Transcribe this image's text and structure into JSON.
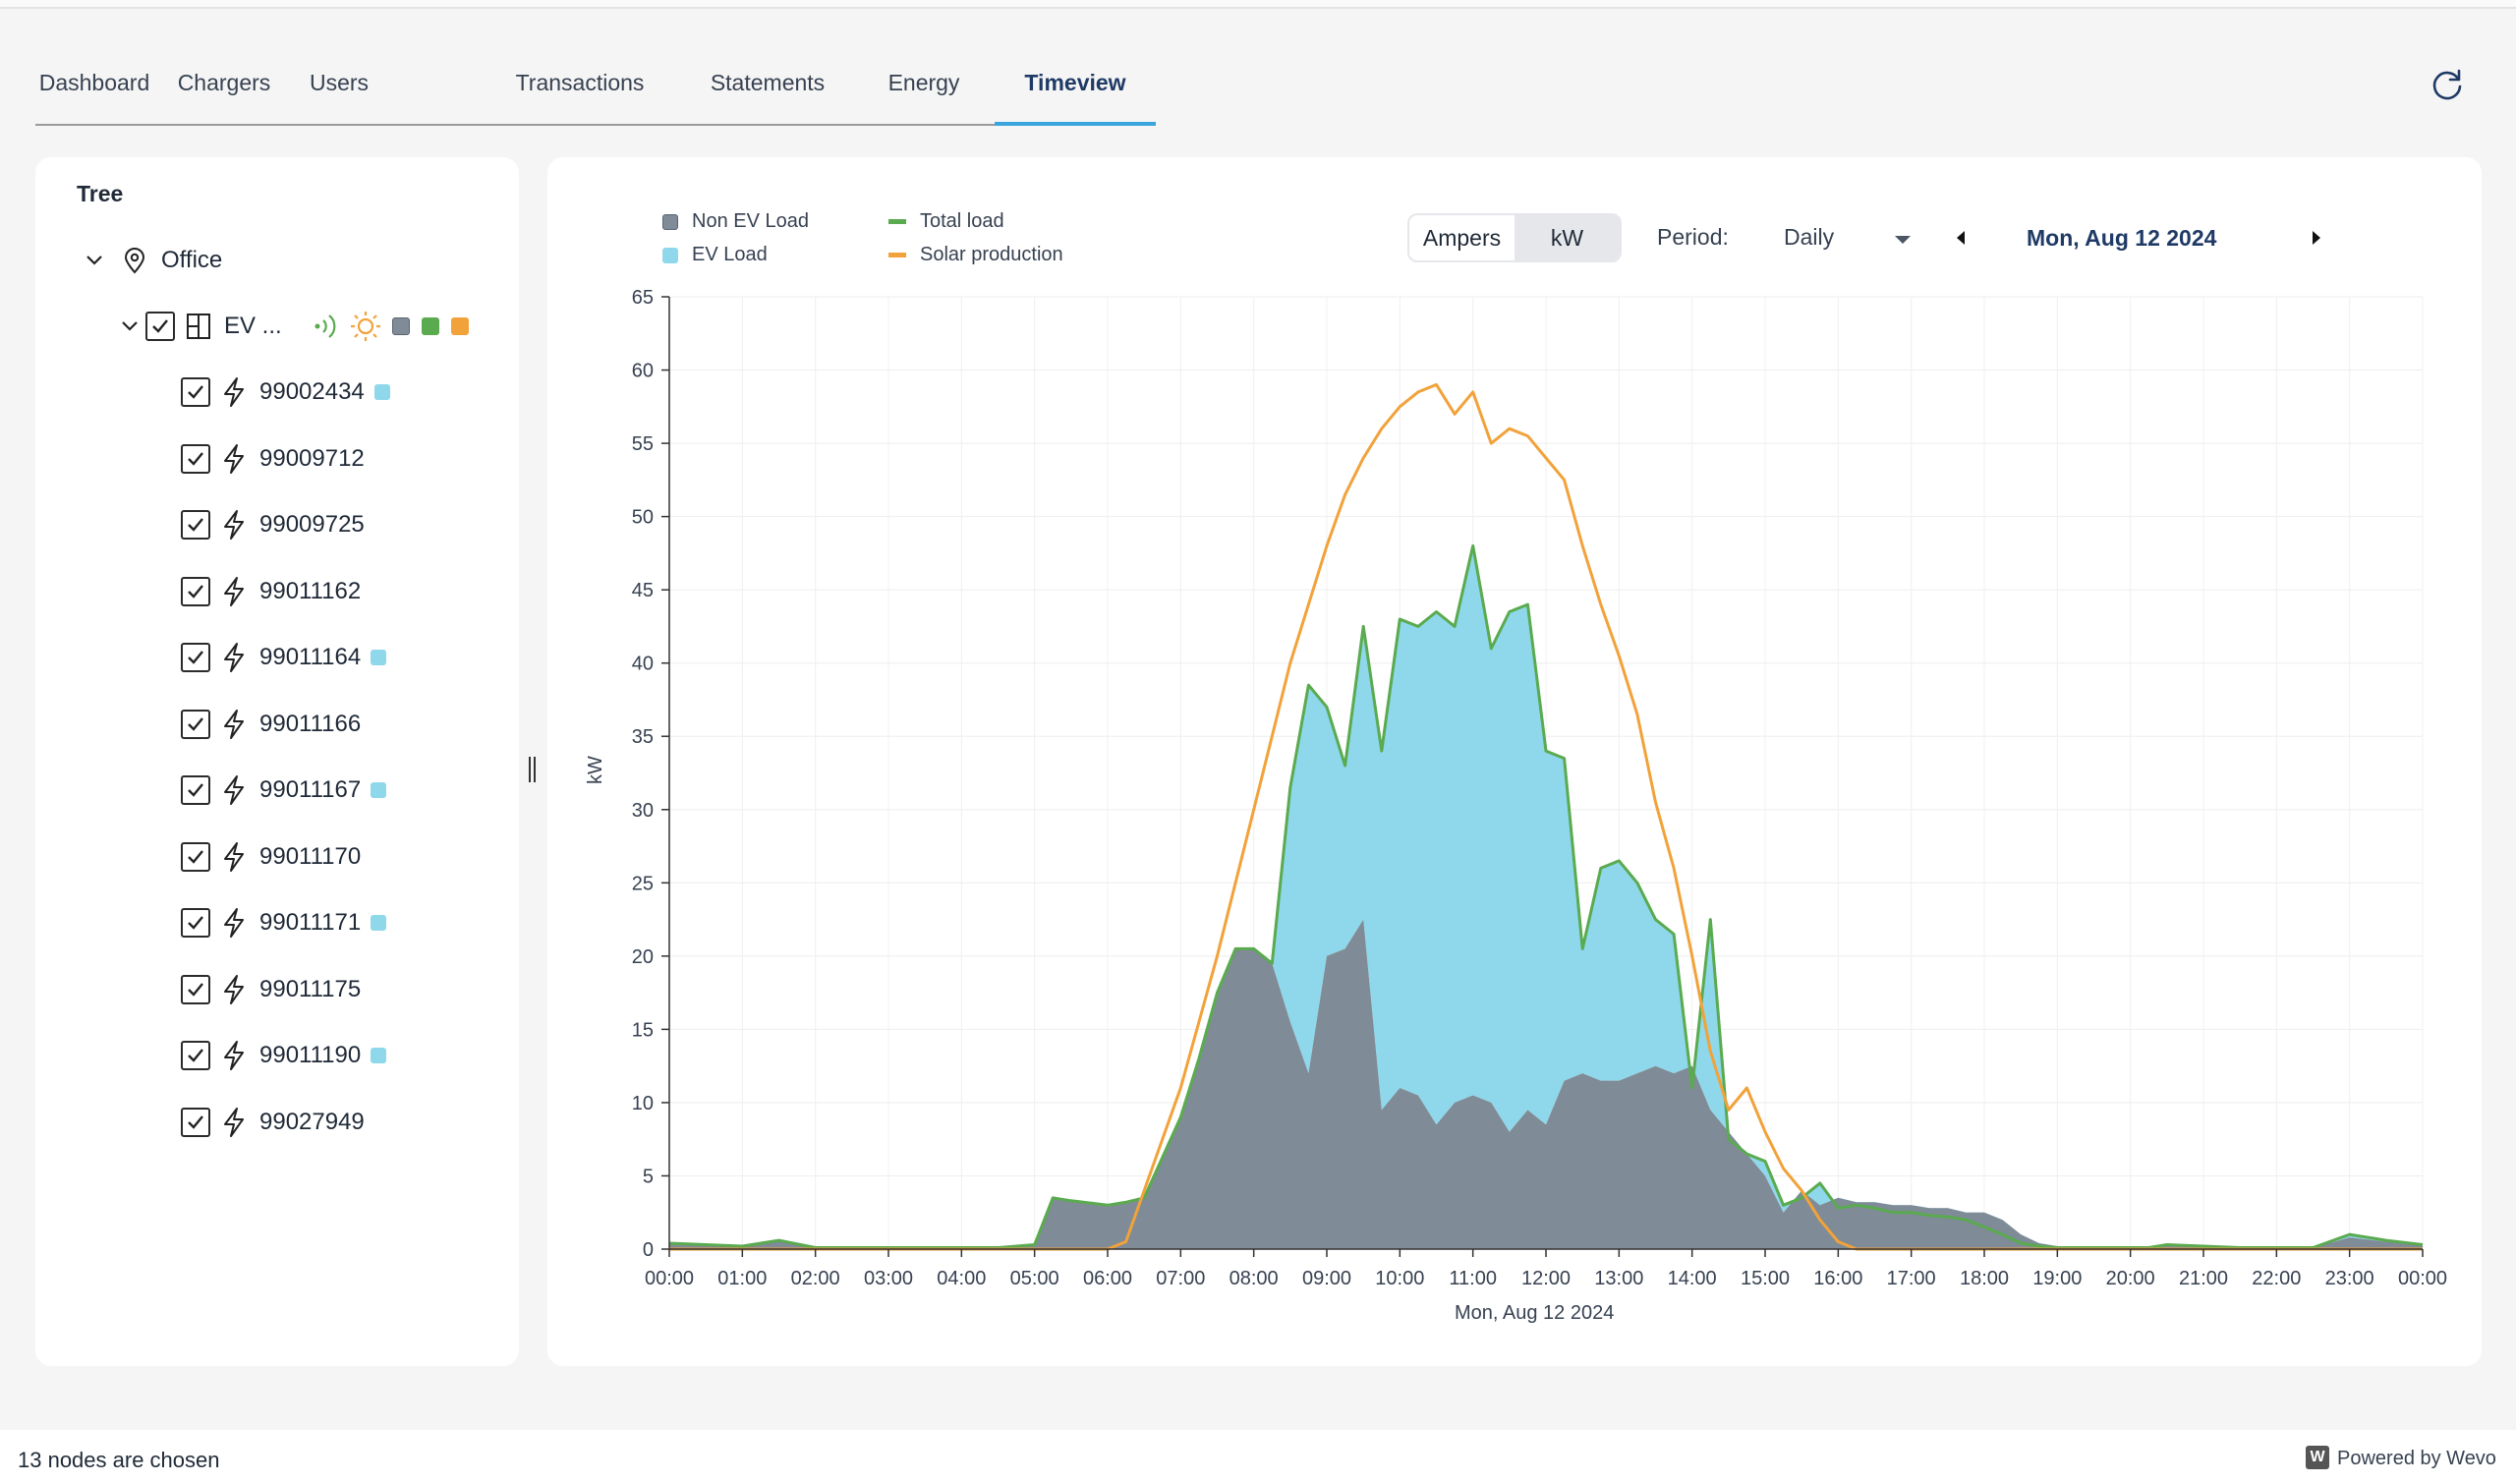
{
  "tabs": [
    "Dashboard",
    "Chargers",
    "Users",
    "Transactions",
    "Statements",
    "Energy",
    "Timeview"
  ],
  "active_tab": "Timeview",
  "tree": {
    "title": "Tree",
    "root_label": "Office",
    "group_label": "EV ...",
    "chargers": [
      {
        "id": "99002434",
        "ev": true
      },
      {
        "id": "99009712",
        "ev": false
      },
      {
        "id": "99009725",
        "ev": false
      },
      {
        "id": "99011162",
        "ev": false
      },
      {
        "id": "99011164",
        "ev": true
      },
      {
        "id": "99011166",
        "ev": false
      },
      {
        "id": "99011167",
        "ev": true
      },
      {
        "id": "99011170",
        "ev": false
      },
      {
        "id": "99011171",
        "ev": true
      },
      {
        "id": "99011175",
        "ev": false
      },
      {
        "id": "99011190",
        "ev": true
      },
      {
        "id": "99027949",
        "ev": false
      }
    ]
  },
  "controls": {
    "unit_options": [
      "Ampers",
      "kW"
    ],
    "unit_selected": "kW",
    "period_label": "Period:",
    "period_value": "Daily",
    "date": "Mon, Aug 12 2024"
  },
  "colors": {
    "non_ev": "#7f8b96",
    "ev": "#8fd8eb",
    "total": "#5aaa4f",
    "solar": "#f2a23a",
    "accent": "#3aa5dd"
  },
  "chart_data": {
    "type": "area",
    "legend": [
      "Non EV Load",
      "Total load",
      "EV Load",
      "Solar production"
    ],
    "ylabel": "kW",
    "xlabel": "Mon, Aug 12 2024",
    "ylim": [
      0,
      65
    ],
    "yticks": [
      0,
      5,
      10,
      15,
      20,
      25,
      30,
      35,
      40,
      45,
      50,
      55,
      60,
      65
    ],
    "xticks": [
      "00:00",
      "01:00",
      "02:00",
      "03:00",
      "04:00",
      "05:00",
      "06:00",
      "07:00",
      "08:00",
      "09:00",
      "10:00",
      "11:00",
      "12:00",
      "13:00",
      "14:00",
      "15:00",
      "16:00",
      "17:00",
      "18:00",
      "19:00",
      "20:00",
      "21:00",
      "22:00",
      "23:00",
      "00:00"
    ],
    "x_hours": [
      0,
      0.5,
      1,
      1.5,
      2,
      2.5,
      3,
      3.5,
      4,
      4.5,
      5,
      5.25,
      5.5,
      6,
      6.25,
      6.5,
      7,
      7.25,
      7.5,
      7.75,
      8,
      8.25,
      8.5,
      8.75,
      9,
      9.25,
      9.5,
      9.75,
      10,
      10.25,
      10.5,
      10.75,
      11,
      11.25,
      11.5,
      11.75,
      12,
      12.25,
      12.5,
      12.75,
      13,
      13.25,
      13.5,
      13.75,
      14,
      14.25,
      14.5,
      14.75,
      15,
      15.25,
      15.5,
      15.75,
      16,
      16.25,
      16.5,
      16.75,
      17,
      17.25,
      17.5,
      17.75,
      18,
      18.25,
      18.5,
      18.75,
      19,
      19.25,
      19.5,
      19.75,
      20,
      20.25,
      20.5,
      21,
      21.5,
      22,
      22.5,
      23,
      23.5,
      24
    ],
    "series": [
      {
        "name": "Non EV Load",
        "values": [
          0.4,
          0.3,
          0.2,
          0.6,
          0.1,
          0.1,
          0.1,
          0.1,
          0.1,
          0.1,
          0.3,
          3.5,
          3.3,
          3.0,
          3.2,
          3.5,
          9.0,
          13.0,
          17.5,
          20.5,
          20.5,
          19.5,
          15.5,
          12.0,
          20.0,
          20.5,
          22.5,
          9.5,
          11.0,
          10.5,
          8.5,
          10.0,
          10.5,
          10.0,
          8.0,
          9.5,
          8.5,
          11.5,
          12.0,
          11.5,
          11.5,
          12.0,
          12.5,
          12.0,
          12.5,
          9.5,
          8.0,
          6.5,
          5.0,
          2.5,
          4.0,
          3.0,
          3.5,
          3.2,
          3.2,
          3.0,
          3.0,
          2.8,
          2.8,
          2.5,
          2.5,
          2.0,
          1.0,
          0.4,
          0.2,
          0.1,
          0.1,
          0.1,
          0.1,
          0.1,
          0.3,
          0.2,
          0.1,
          0.1,
          0.1,
          0.8,
          0.5,
          0.3
        ]
      },
      {
        "name": "Total load",
        "values": [
          0.4,
          0.3,
          0.2,
          0.6,
          0.1,
          0.1,
          0.1,
          0.1,
          0.1,
          0.1,
          0.3,
          3.5,
          3.3,
          3.0,
          3.2,
          3.5,
          9.0,
          13.0,
          17.5,
          20.5,
          20.5,
          19.5,
          31.5,
          38.5,
          37.0,
          33.0,
          42.5,
          34.0,
          43.0,
          42.5,
          43.5,
          42.5,
          48.0,
          41.0,
          43.5,
          44.0,
          34.0,
          33.5,
          20.5,
          26.0,
          26.5,
          25.0,
          22.5,
          21.5,
          11.0,
          22.5,
          7.5,
          6.5,
          6.0,
          3.0,
          3.5,
          4.5,
          2.8,
          3.0,
          2.8,
          2.5,
          2.5,
          2.3,
          2.2,
          2.0,
          1.5,
          1.0,
          0.4,
          0.2,
          0.1,
          0.1,
          0.1,
          0.1,
          0.1,
          0.1,
          0.3,
          0.2,
          0.1,
          0.1,
          0.1,
          1.0,
          0.6,
          0.3
        ]
      },
      {
        "name": "Solar production",
        "values": [
          0,
          0,
          0,
          0,
          0,
          0,
          0,
          0,
          0,
          0,
          0,
          0,
          0,
          0,
          0.5,
          4.0,
          11.0,
          15.5,
          20.0,
          25.0,
          30.0,
          35.0,
          40.0,
          44.0,
          48.0,
          51.5,
          54.0,
          56.0,
          57.5,
          58.5,
          59.0,
          57.0,
          58.5,
          55.0,
          56.0,
          55.5,
          54.0,
          52.5,
          48.0,
          44.0,
          40.5,
          36.5,
          30.5,
          26.0,
          20.0,
          13.5,
          9.5,
          11.0,
          8.0,
          5.5,
          4.0,
          2.0,
          0.5,
          0,
          0,
          0,
          0,
          0,
          0,
          0,
          0,
          0,
          0,
          0,
          0,
          0,
          0,
          0,
          0,
          0,
          0,
          0,
          0,
          0,
          0,
          0,
          0,
          0
        ]
      }
    ]
  },
  "footer": {
    "status": "13 nodes are chosen",
    "brand": "Powered by Wevo"
  }
}
